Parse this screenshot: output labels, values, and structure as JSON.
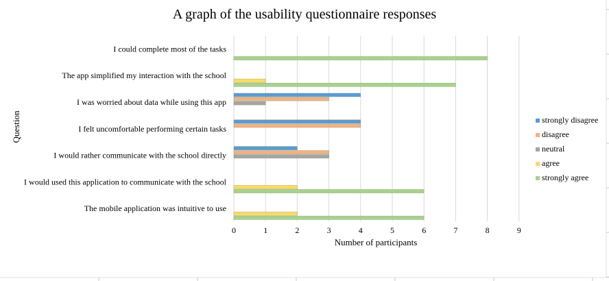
{
  "chart_data": {
    "type": "bar",
    "orientation": "horizontal",
    "title": "A graph of the usability questionnaire responses",
    "xlabel": "Number of participants",
    "ylabel": "Question",
    "xlim": [
      0,
      9
    ],
    "x_ticks": [
      0,
      1,
      2,
      3,
      4,
      5,
      6,
      7,
      8,
      9
    ],
    "grid": "vertical",
    "legend_position": "right",
    "categories": [
      "I could complete most of the tasks",
      "The app simplified my interaction with the school",
      "I was worried about data while using this app",
      "I felt uncomfortable performing certain tasks",
      "I would rather communicate with the school directly",
      "I would used this application to communicate with the school",
      "The mobile application was intuitive to use"
    ],
    "series": [
      {
        "name": "strongly disagree",
        "color": "#5b9bd5",
        "values": [
          0,
          0,
          4,
          4,
          2,
          0,
          0
        ]
      },
      {
        "name": "disagree",
        "color": "#f4b183",
        "values": [
          0,
          0,
          3,
          4,
          3,
          0,
          0
        ]
      },
      {
        "name": "neutral",
        "color": "#a5a5a5",
        "values": [
          0,
          0,
          1,
          0,
          3,
          0,
          0
        ]
      },
      {
        "name": "agree",
        "color": "#ffd966",
        "values": [
          0,
          1,
          0,
          0,
          0,
          2,
          2
        ]
      },
      {
        "name": "strongly agree",
        "color": "#a9d18e",
        "values": [
          8,
          7,
          0,
          0,
          0,
          6,
          6
        ]
      }
    ]
  }
}
